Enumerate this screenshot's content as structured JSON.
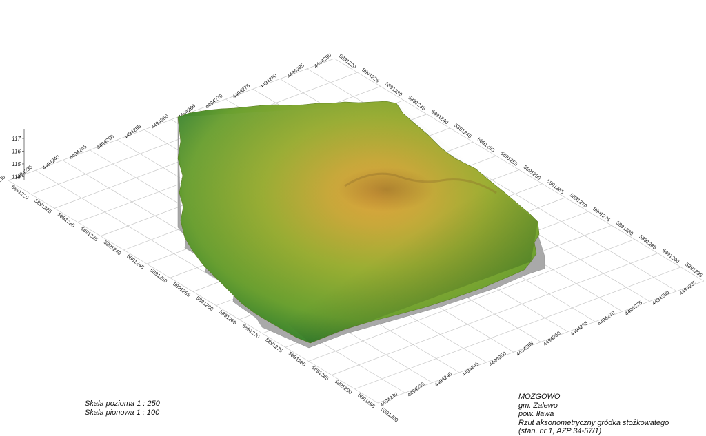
{
  "scale": {
    "horizontal": "Skala pozioma 1 : 250",
    "vertical": "Skala pionowa 1 : 100"
  },
  "info": {
    "place": "MOZGOWO",
    "commune": "gm. Zalewo",
    "county": "pow. Iława",
    "description": "Rzut aksonometryczny gródka stożkowatego",
    "reference": "(stan. nr 1, AZP 34-57/1)"
  },
  "axes": {
    "easting_ticks": [
      "4494230",
      "4494235",
      "4494240",
      "4494245",
      "4494250",
      "4494255",
      "4494260",
      "4494265",
      "4494270",
      "4494275",
      "4494280",
      "4494285",
      "4494290"
    ],
    "northing_ticks": [
      "5891220",
      "5891225",
      "5891230",
      "5891235",
      "5891240",
      "5891245",
      "5891250",
      "5891255",
      "5891260",
      "5891265",
      "5891270",
      "5891275",
      "5891280",
      "5891285",
      "5891290",
      "5891295",
      "5891300"
    ],
    "elevation_ticks": [
      "114",
      "115",
      "116",
      "117"
    ]
  },
  "colors": {
    "low": "#0b6a2e",
    "mid": "#8ea62e",
    "high": "#d9a43c",
    "side": "#a8a8a8",
    "grid": "#c8c8c8"
  }
}
